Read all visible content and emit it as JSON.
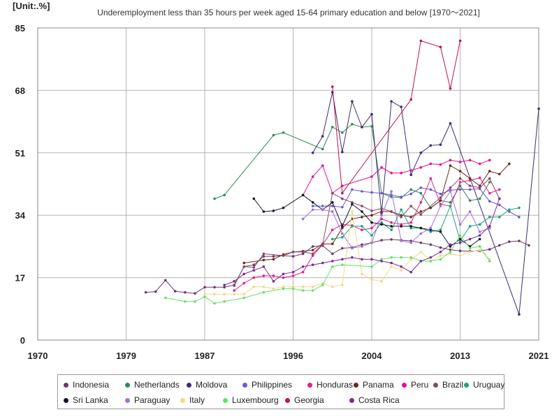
{
  "unit_label": "[Unit:.%]",
  "chart_data": {
    "type": "line",
    "title": "Underemployment less than 35 hours per week aged 15-64 primary education and below [1970～2021]",
    "xlabel": "",
    "ylabel": "",
    "xlim": [
      1970,
      2021
    ],
    "ylim": [
      0,
      85
    ],
    "x_ticks": [
      "1970",
      "1979",
      "1987",
      "1996",
      "2004",
      "2013",
      "2021"
    ],
    "y_ticks": [
      "0",
      "17",
      "34",
      "51",
      "68",
      "85"
    ],
    "grid": true,
    "legend_position": "bottom",
    "series": [
      {
        "name": "Indonesia",
        "color": "#6b3a6b",
        "x": [
          1981,
          1982,
          1983,
          1984,
          1985,
          1986,
          1987,
          1988,
          1989,
          1990,
          1991,
          1992,
          1993,
          1994,
          1995,
          1996,
          1997,
          1998,
          1999,
          2000,
          2001,
          2002,
          2003,
          2004,
          2005,
          2006,
          2007,
          2008,
          2009,
          2010,
          2011,
          2012,
          2013,
          2014,
          2015,
          2016,
          2017,
          2018,
          2019,
          2020
        ],
        "y": [
          13,
          13.2,
          16.3,
          13.3,
          13,
          12.7,
          14.4,
          14.4,
          14.4,
          15,
          20,
          20.5,
          22.8,
          22.8,
          23,
          22.8,
          23.5,
          25.5,
          25.7,
          23.5,
          25,
          25.2,
          26,
          26.5,
          27.2,
          27.4,
          27.2,
          27,
          26.5,
          26,
          25.2,
          24.6,
          24.3,
          24.2,
          24.3,
          24.7,
          25.8,
          26.8,
          27,
          25.8
        ]
      },
      {
        "name": "Netherlands",
        "color": "#2e8b57",
        "x": [
          1988,
          1989,
          1994,
          1995,
          1999,
          2000,
          2001,
          2002,
          2003,
          2004,
          2005,
          2006,
          2007,
          2008,
          2009,
          2010,
          2011,
          2012,
          2013,
          2014,
          2015,
          2016
        ],
        "y": [
          38.5,
          39.5,
          55.8,
          56.5,
          52,
          58,
          56.5,
          58.8,
          58,
          58.2,
          40,
          39,
          38.8,
          41,
          40,
          36,
          38,
          37.5,
          42,
          38,
          38.5,
          43
        ]
      },
      {
        "name": "Moldova",
        "color": "#3d2b6f",
        "x": [
          1998,
          1999,
          2000,
          2001,
          2002,
          2003,
          2004,
          2005,
          2006,
          2007,
          2008,
          2009,
          2010,
          2011,
          2012,
          2019,
          2021
        ],
        "y": [
          51,
          55.5,
          67.5,
          51.2,
          65,
          58,
          61.5,
          34.5,
          65,
          63.5,
          45,
          51,
          53,
          53.2,
          59,
          7,
          63
        ]
      },
      {
        "name": "Philippines",
        "color": "#6a5acd",
        "x": [
          1998,
          1999,
          2000,
          2001,
          2002,
          2003,
          2004,
          2005,
          2006,
          2007,
          2008,
          2009,
          2010,
          2011,
          2012,
          2013,
          2014,
          2015,
          2016,
          2017,
          2018,
          2019
        ],
        "y": [
          36.5,
          36.5,
          36.5,
          36.2,
          41,
          40.5,
          40.2,
          40,
          39.5,
          39,
          39.8,
          41.5,
          41,
          39.8,
          40.8,
          41,
          41,
          41.2,
          37.8,
          36.8,
          35,
          33.5
        ]
      },
      {
        "name": "Honduras",
        "color": "#e0208a",
        "x": [
          1990,
          1991,
          1992,
          1993,
          1994,
          1995,
          1996,
          1997,
          1998,
          1999,
          2000,
          2001,
          2002,
          2003,
          2004,
          2005,
          2006,
          2007,
          2008,
          2009,
          2010,
          2011,
          2012,
          2013,
          2014,
          2015,
          2016,
          2017
        ],
        "y": [
          13.5,
          15.5,
          17,
          17.5,
          17.5,
          17,
          17.5,
          18.5,
          23,
          26,
          30,
          31.5,
          31.2,
          30,
          30.5,
          33,
          32,
          31.5,
          32,
          37.5,
          44,
          37,
          36.5,
          43,
          43.5,
          44.2,
          40,
          41
        ]
      },
      {
        "name": "Panama",
        "color": "#6b2b18",
        "x": [
          1991,
          1993,
          1994,
          1995,
          1996,
          1997,
          1998,
          1999,
          2000,
          2001,
          2002,
          2003,
          2004,
          2005,
          2006,
          2007,
          2008,
          2009,
          2010,
          2011,
          2012,
          2013,
          2014,
          2015,
          2016,
          2017,
          2018
        ],
        "y": [
          21,
          21.8,
          22,
          23.3,
          24,
          24.2,
          24.5,
          26.2,
          26.2,
          30.5,
          33,
          33.5,
          34,
          35,
          35,
          34,
          33.5,
          35,
          36,
          38,
          47.5,
          46,
          44,
          42,
          46,
          45.2,
          48
        ]
      },
      {
        "name": "Peru",
        "color": "#e60e9a",
        "x": [
          1997,
          1998,
          1999,
          2000,
          2001,
          2004,
          2005,
          2006,
          2007,
          2008,
          2009,
          2010,
          2011,
          2012,
          2013,
          2014,
          2015,
          2016
        ],
        "y": [
          39.5,
          44.5,
          47.5,
          40,
          42,
          44.5,
          47,
          45.5,
          45.5,
          46.2,
          47,
          48,
          47.8,
          49,
          48.5,
          49,
          48,
          49
        ]
      },
      {
        "name": "Brazil",
        "color": "#8b4569",
        "x": [
          1990,
          1991,
          1992,
          1993,
          1995,
          1996,
          1997,
          1998,
          1999,
          2000,
          2001,
          2002,
          2003,
          2004,
          2005,
          2006,
          2007,
          2008,
          2009,
          2011,
          2012,
          2013,
          2014,
          2015,
          2016,
          2017
        ],
        "y": [
          14.8,
          20,
          19.8,
          23.5,
          23,
          24,
          24,
          23.5,
          26,
          40,
          38.5,
          37.5,
          36.5,
          35.2,
          35.8,
          35,
          33.5,
          36.5,
          34.2,
          38.8,
          41.5,
          44,
          42,
          41.5,
          44,
          38.5
        ]
      },
      {
        "name": "Uruguay",
        "color": "#1aa37a",
        "x": [
          2000,
          2001,
          2002,
          2003,
          2004,
          2005,
          2006,
          2007,
          2008,
          2009,
          2010,
          2011,
          2012,
          2013,
          2014,
          2015,
          2016,
          2017,
          2018,
          2019
        ],
        "y": [
          27.5,
          28,
          31,
          31,
          28.5,
          32,
          30,
          35.5,
          30.5,
          30.5,
          29.5,
          30,
          36.5,
          27,
          31,
          31.5,
          33.5,
          33.5,
          35.5,
          36
        ]
      },
      {
        "name": "Sri Lanka",
        "color": "#13182e",
        "x": [
          1992,
          1993,
          1994,
          1995,
          1997,
          1998,
          1999,
          2000,
          2001,
          2002,
          2003,
          2004,
          2005,
          2006,
          2007,
          2008,
          2009,
          2010,
          2011,
          2012,
          2013,
          2014,
          2015
        ],
        "y": [
          38.5,
          35,
          35.2,
          36,
          39.5,
          37.5,
          35.5,
          37.5,
          31,
          37,
          35,
          32,
          31.5,
          31,
          31,
          31,
          30.5,
          30,
          29.5,
          25.5,
          27.5,
          25.5,
          27.5
        ]
      },
      {
        "name": "Paraguay",
        "color": "#a070e0",
        "x": [
          1997,
          1998,
          1999,
          2000,
          2001,
          2002,
          2003,
          2004,
          2005,
          2006,
          2007,
          2008,
          2009,
          2010,
          2011,
          2012,
          2013,
          2014,
          2015,
          2016
        ],
        "y": [
          33,
          35.5,
          35.5,
          35,
          29,
          25,
          25.5,
          26.5,
          34,
          40.5,
          27,
          26.5,
          29,
          30.5,
          36.5,
          40.5,
          31.5,
          35,
          29.5,
          30.5
        ]
      },
      {
        "name": "Italy",
        "color": "#f2d98a",
        "x": [
          1987,
          1988,
          1989,
          1990,
          1991,
          1992,
          1993,
          1994,
          1995,
          1996,
          1997,
          1998,
          1999,
          2000,
          2001,
          2002,
          2003,
          2004,
          2005,
          2006,
          2007,
          2008,
          2009,
          2010,
          2011,
          2012,
          2013,
          2014,
          2015,
          2016
        ],
        "y": [
          12.5,
          12.5,
          12.5,
          12.5,
          12.5,
          14.5,
          14.5,
          14,
          14.5,
          14.5,
          14.5,
          14.5,
          15.5,
          14.5,
          15,
          35,
          18,
          16.5,
          16,
          20,
          19,
          22,
          24,
          21.5,
          23,
          23.5,
          23,
          24,
          24.5,
          22
        ]
      },
      {
        "name": "Luxembourg",
        "color": "#66e066",
        "x": [
          1983,
          1985,
          1986,
          1987,
          1988,
          1989,
          1991,
          1993,
          1995,
          1996,
          1997,
          1998,
          1999,
          2000,
          2001,
          2004,
          2005,
          2006,
          2007,
          2008,
          2009,
          2010,
          2011,
          2012,
          2013,
          2014,
          2015,
          2016
        ],
        "y": [
          11.5,
          10.5,
          10.5,
          11.8,
          10,
          10.5,
          11.5,
          13,
          14,
          14,
          13.5,
          13.5,
          15,
          20,
          20.5,
          20,
          22,
          22.5,
          22.5,
          22.5,
          21.5,
          21.5,
          22,
          24,
          28.5,
          25,
          25.5,
          21.5
        ]
      },
      {
        "name": "Georgia",
        "color": "#c0124a",
        "x": [
          2000,
          2001,
          2008,
          2009,
          2011,
          2012,
          2013
        ],
        "y": [
          69,
          40,
          65.5,
          81.5,
          79.8,
          68.5,
          81.5
        ]
      },
      {
        "name": "Costa Rica",
        "color": "#7a2a9a",
        "x": [
          1989,
          1990,
          1991,
          1992,
          1993,
          1994,
          1995,
          1996,
          1997,
          1998,
          1999,
          2000,
          2001,
          2002,
          2003,
          2004,
          2005,
          2006,
          2007,
          2008,
          2009,
          2010,
          2011,
          2012,
          2013,
          2014,
          2015,
          2016,
          2017
        ],
        "y": [
          15,
          16,
          18,
          19,
          20,
          16,
          18,
          18.5,
          20,
          20.5,
          21,
          21.5,
          22,
          22.5,
          22,
          22,
          21.5,
          21,
          20,
          18.5,
          21.5,
          22.5,
          24,
          26,
          26.5,
          27.5,
          28.5,
          31,
          38.5
        ]
      }
    ]
  }
}
